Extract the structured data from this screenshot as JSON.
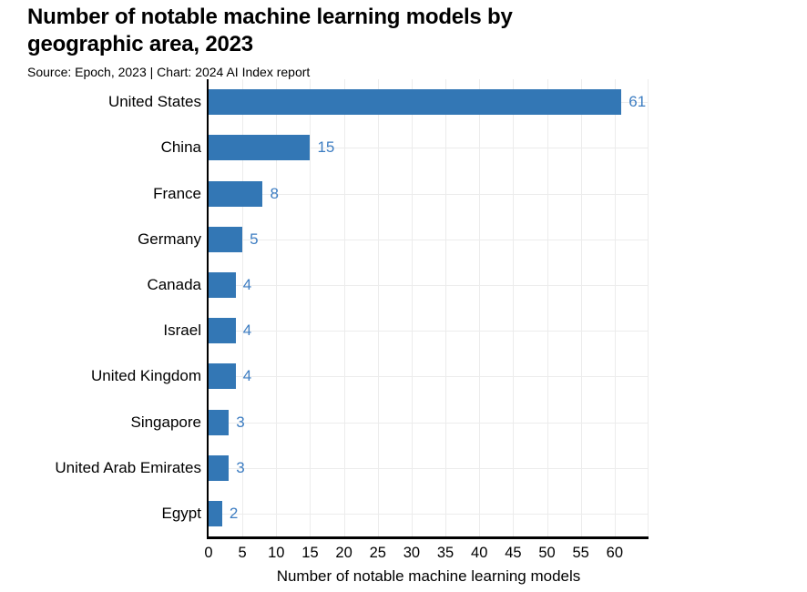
{
  "chart_data": {
    "type": "bar",
    "orientation": "horizontal",
    "title": "Number of notable machine learning models by geographic area, 2023",
    "source": "Source: Epoch, 2023 | Chart: 2024 AI Index report",
    "xlabel": "Number of notable machine learning models",
    "categories": [
      "United States",
      "China",
      "France",
      "Germany",
      "Canada",
      "Israel",
      "United Kingdom",
      "Singapore",
      "United Arab Emirates",
      "Egypt"
    ],
    "values": [
      61,
      15,
      8,
      5,
      4,
      4,
      4,
      3,
      3,
      2
    ],
    "xticks": [
      0,
      5,
      10,
      15,
      20,
      25,
      30,
      35,
      40,
      45,
      50,
      55,
      60
    ],
    "xlim": [
      0,
      65
    ],
    "grid": true,
    "legend_position": "none",
    "colors": {
      "bar": "#3377b5",
      "value_label": "#3d7dc2",
      "axis": "#000000",
      "gridline": "#ececec",
      "text": "#000000",
      "background": "#ffffff"
    }
  }
}
